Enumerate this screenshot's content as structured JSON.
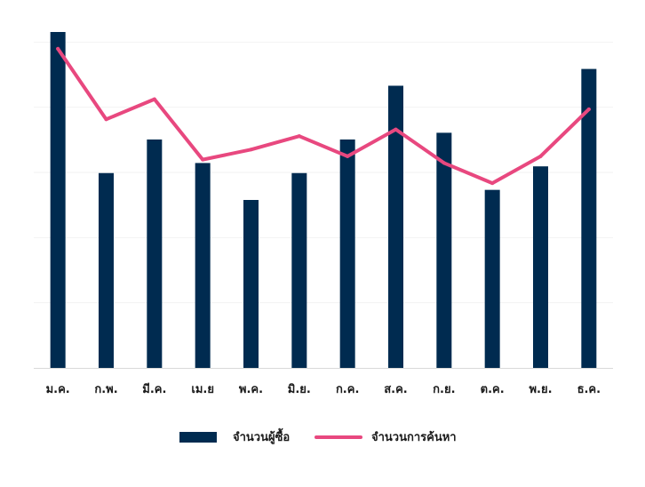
{
  "chart_data": {
    "type": "bar",
    "title": "",
    "xlabel": "",
    "ylabel": "",
    "categories": [
      "ม.ค.",
      "ก.พ.",
      "มี.ค.",
      "เม.ย",
      "พ.ค.",
      "มิ.ย.",
      "ก.ค.",
      "ส.ค.",
      "ก.ย.",
      "ต.ค.",
      "พ.ย.",
      "ธ.ค."
    ],
    "ylim": [
      0,
      100
    ],
    "grid": true,
    "legend_position": "bottom",
    "series": [
      {
        "name": "จำนวนผู้ซื้อ",
        "type": "bar",
        "color": "#002b50",
        "values": [
          100,
          58,
          68,
          61,
          50,
          58,
          68,
          84,
          70,
          53,
          60,
          89
        ]
      },
      {
        "name": "จำนวนการค้นหา",
        "type": "line",
        "color": "#e8487f",
        "values": [
          95,
          74,
          80,
          62,
          65,
          69,
          63,
          71,
          61,
          55,
          63,
          77
        ]
      }
    ]
  }
}
